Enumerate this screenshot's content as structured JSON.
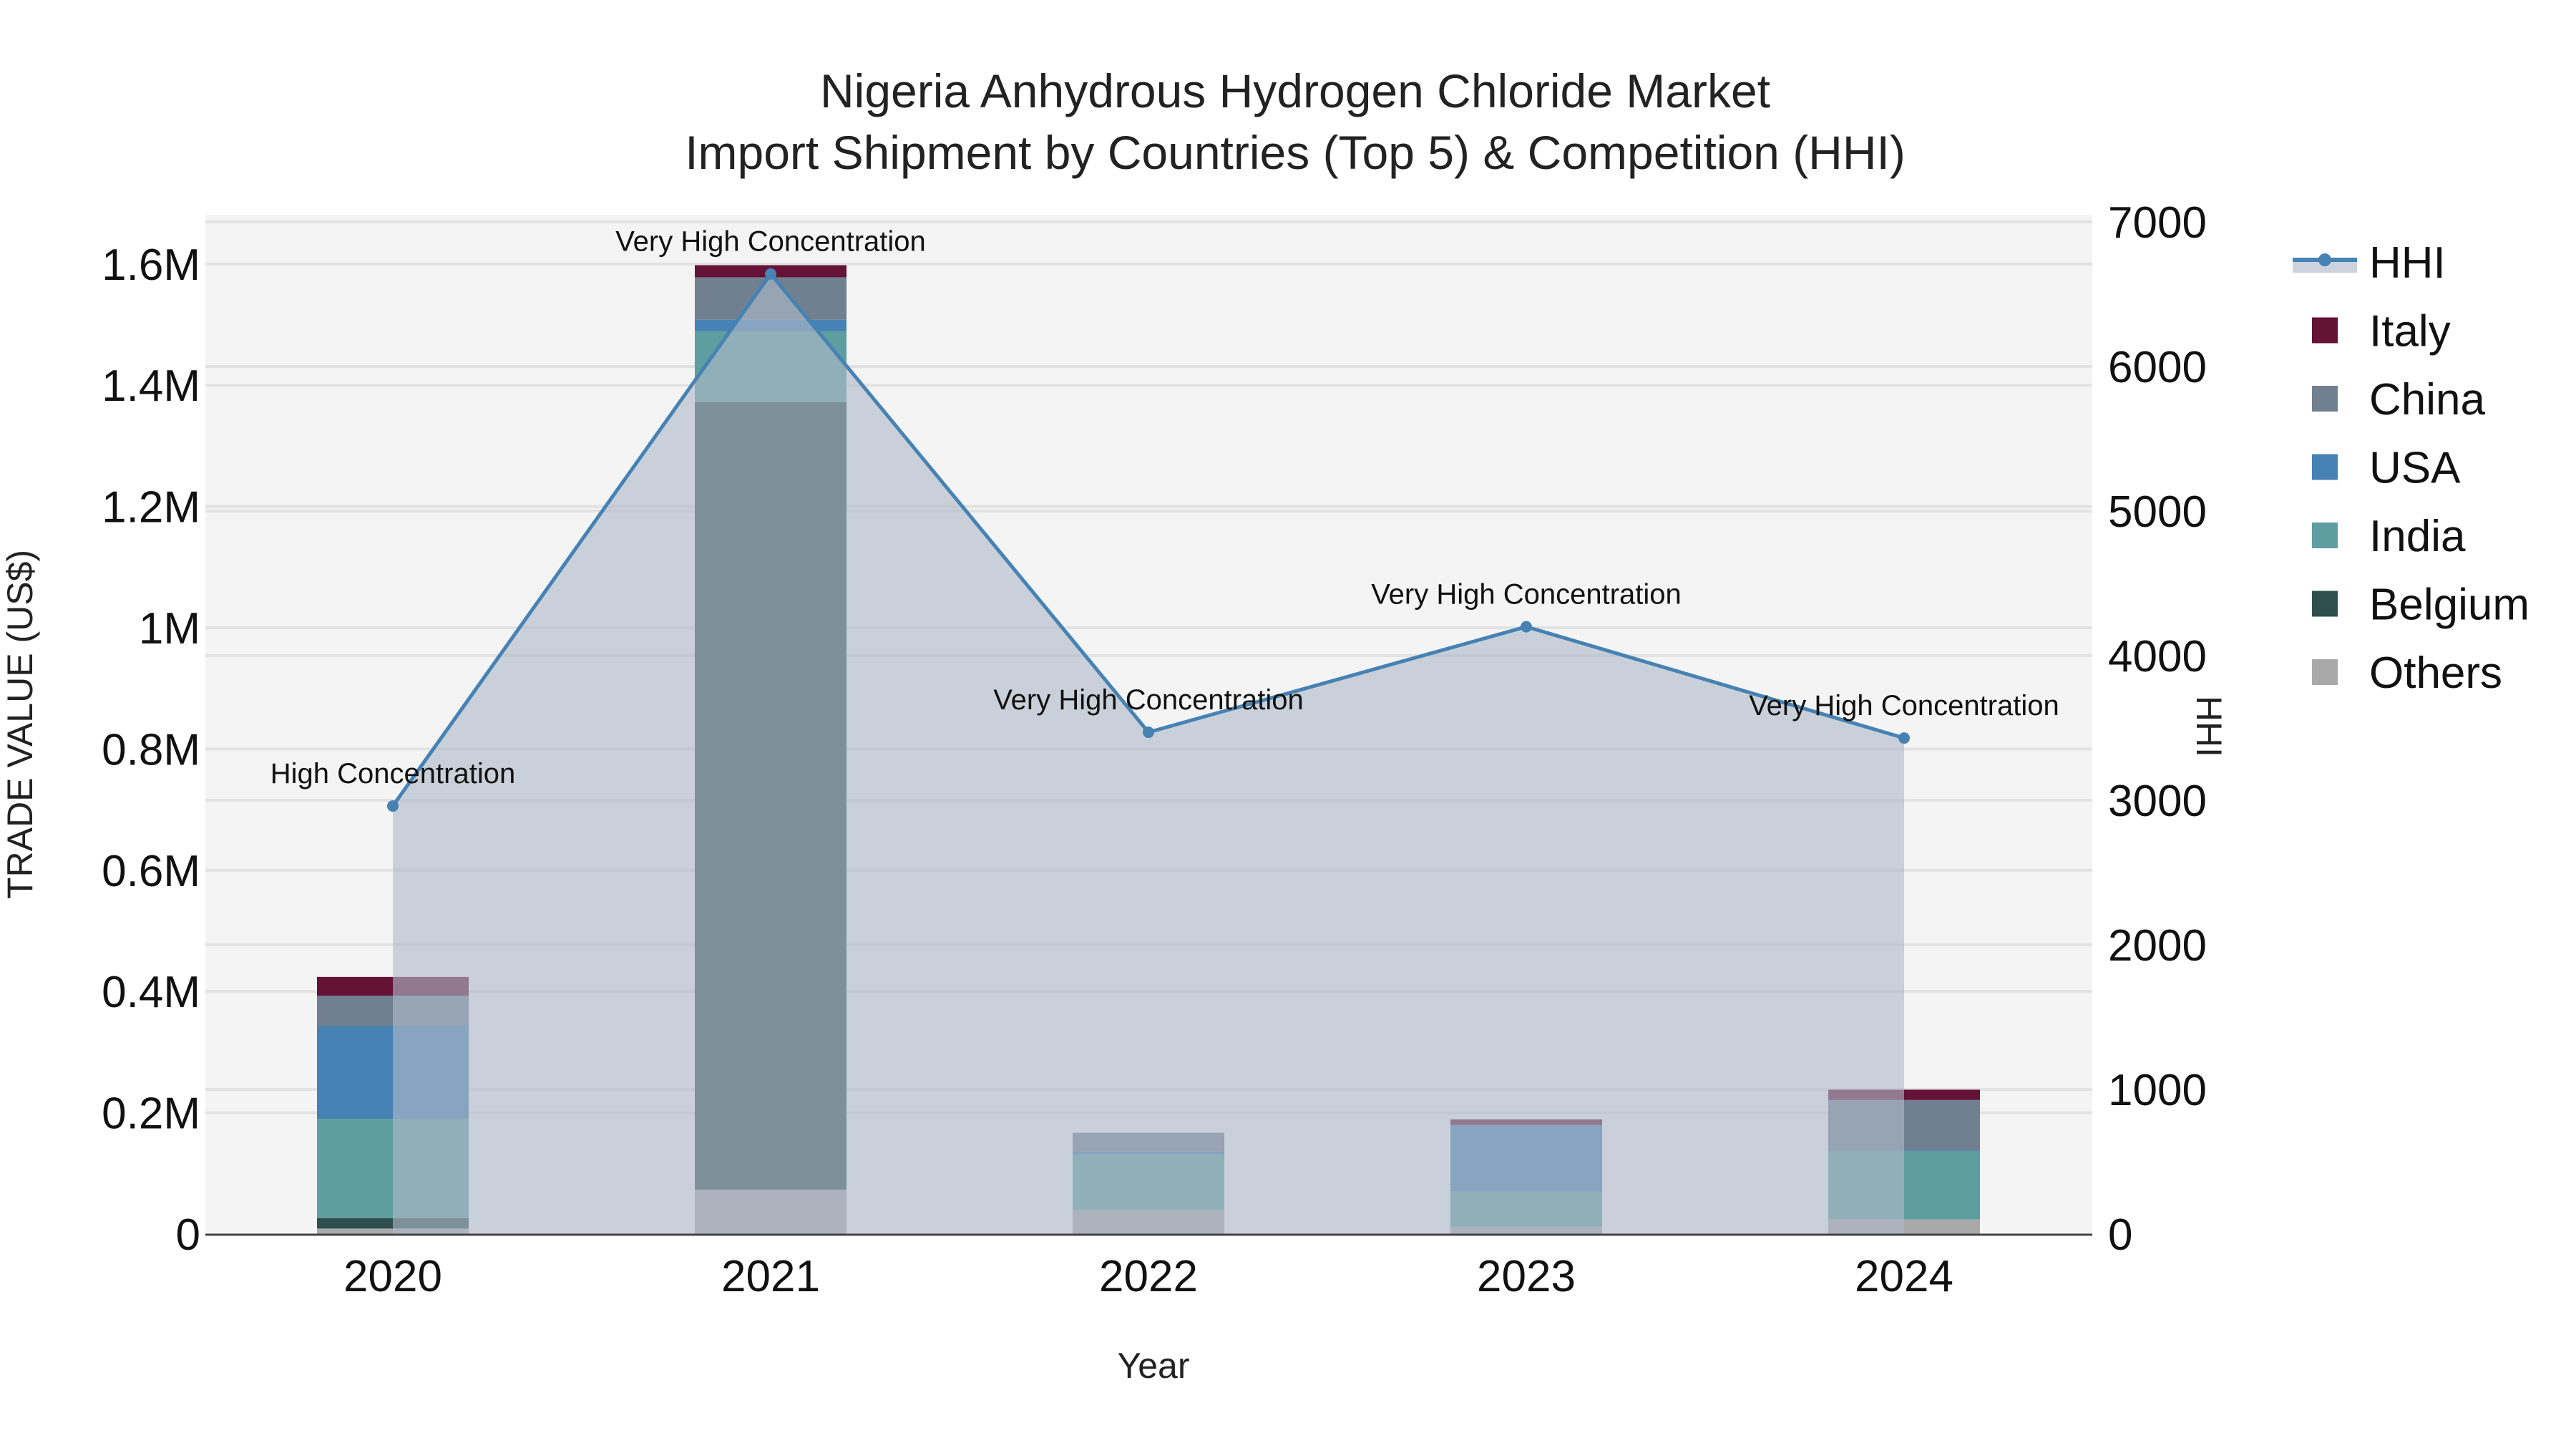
{
  "title": {
    "line1": "Nigeria Anhydrous Hydrogen Chloride Market",
    "line2": "Import Shipment by Countries (Top 5) & Competition (HHI)"
  },
  "axes": {
    "x_title": "Year",
    "y_left_title": "TRADE VALUE (US$)",
    "y_right_title": "HHI",
    "y_left_ticks": [
      "0",
      "0.2M",
      "0.4M",
      "0.6M",
      "0.8M",
      "1M",
      "1.2M",
      "1.4M",
      "1.6M"
    ],
    "y_right_ticks": [
      "0",
      "1000",
      "2000",
      "3000",
      "4000",
      "5000",
      "6000",
      "7000"
    ]
  },
  "legend": {
    "items": [
      {
        "label": "HHI",
        "type": "line",
        "color": "#4682b4"
      },
      {
        "label": "Italy",
        "type": "bar",
        "color": "#641235"
      },
      {
        "label": "China",
        "type": "bar",
        "color": "#708090"
      },
      {
        "label": "USA",
        "type": "bar",
        "color": "#4682b4"
      },
      {
        "label": "India",
        "type": "bar",
        "color": "#5f9ea0"
      },
      {
        "label": "Belgium",
        "type": "bar",
        "color": "#2f4f4f"
      },
      {
        "label": "Others",
        "type": "bar",
        "color": "#a9a9a9"
      }
    ]
  },
  "chart_data": {
    "type": "bar",
    "title": "Nigeria Anhydrous Hydrogen Chloride Market - Import Shipment by Countries (Top 5) & Competition (HHI)",
    "xlabel": "Year",
    "ylabel": "TRADE VALUE (US$)",
    "y2label": "HHI",
    "categories": [
      "2020",
      "2021",
      "2022",
      "2023",
      "2024"
    ],
    "stacked": true,
    "ylim": [
      0,
      1680000
    ],
    "y2lim": [
      0,
      7000
    ],
    "grid": true,
    "legend_position": "right",
    "series": [
      {
        "name": "Others",
        "color": "#a9a9a9",
        "values": [
          9000,
          73000,
          40000,
          12000,
          24000
        ]
      },
      {
        "name": "Belgium",
        "color": "#2f4f4f",
        "values": [
          17000,
          1299000,
          0,
          0,
          0
        ]
      },
      {
        "name": "India",
        "color": "#5f9ea0",
        "values": [
          164000,
          117000,
          91000,
          58000,
          113000
        ]
      },
      {
        "name": "USA",
        "color": "#4682b4",
        "values": [
          153000,
          19000,
          5000,
          110000,
          1000
        ]
      },
      {
        "name": "China",
        "color": "#708090",
        "values": [
          50000,
          70000,
          31000,
          0,
          83000
        ]
      },
      {
        "name": "Italy",
        "color": "#641235",
        "values": [
          31000,
          20000,
          0,
          9000,
          17000
        ]
      }
    ],
    "line_series": {
      "name": "HHI",
      "axis": "right",
      "type": "line+area",
      "color": "#4682b4",
      "values": [
        2960,
        6640,
        3470,
        4200,
        3430
      ],
      "annotations": [
        "High Concentration",
        "Very High Concentration",
        "Very High Concentration",
        "Very High Concentration",
        "Very High Concentration"
      ]
    }
  }
}
